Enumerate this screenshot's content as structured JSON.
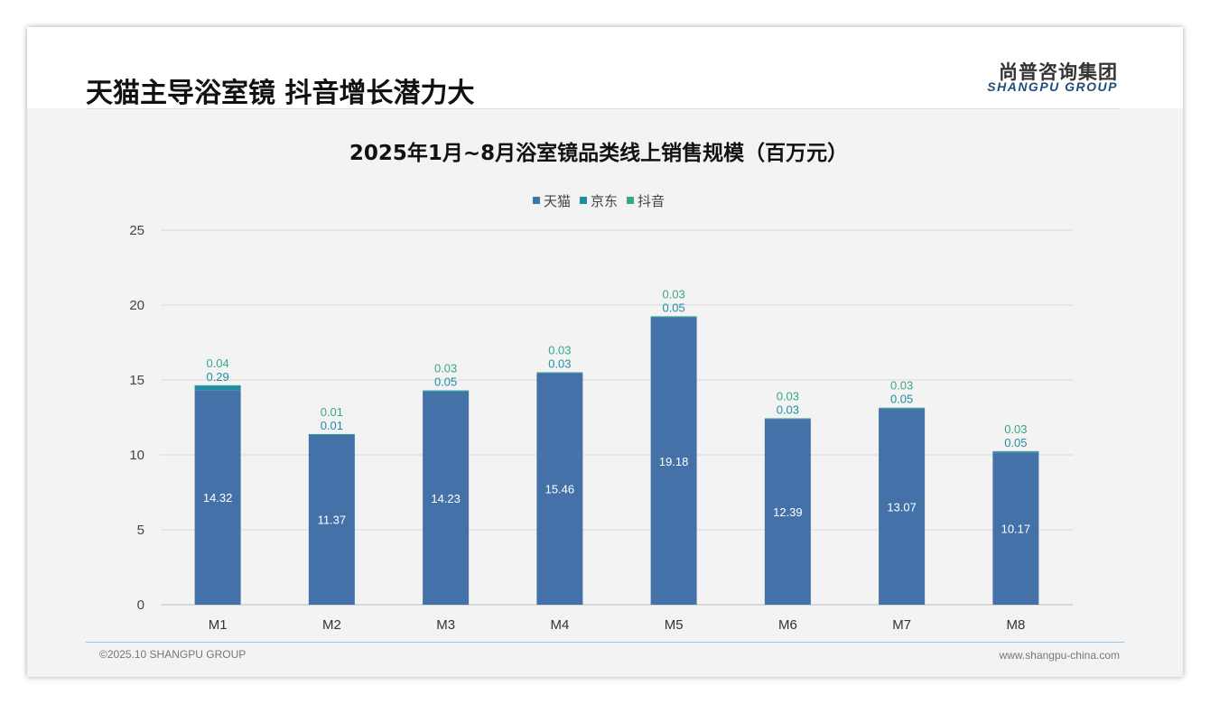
{
  "header": {
    "title": "天猫主导浴室镜 抖音增长潜力大",
    "logo_cn": "尚普咨询集团",
    "logo_en": "SHANGPU GROUP"
  },
  "footer": {
    "copyright": "©2025.10 SHANGPU GROUP",
    "website": "www.shangpu-china.com"
  },
  "watermark": {
    "cn": "尚普咨询集团",
    "en": "SHANGPU GROUP"
  },
  "chart_data": {
    "type": "bar",
    "stacked": true,
    "title": "2025年1月~8月浴室镜品类线上销售规模（百万元）",
    "categories": [
      "M1",
      "M2",
      "M3",
      "M4",
      "M5",
      "M6",
      "M7",
      "M8"
    ],
    "series": [
      {
        "name": "天猫",
        "color": "#4472a8",
        "values": [
          14.32,
          11.37,
          14.23,
          15.46,
          19.18,
          12.39,
          13.07,
          10.17
        ]
      },
      {
        "name": "京东",
        "color": "#1f8ea3",
        "values": [
          0.29,
          0.01,
          0.05,
          0.03,
          0.05,
          0.03,
          0.05,
          0.05
        ]
      },
      {
        "name": "抖音",
        "color": "#3aa68c",
        "values": [
          0.04,
          0.01,
          0.03,
          0.03,
          0.03,
          0.03,
          0.03,
          0.03
        ]
      }
    ],
    "ylim": [
      0,
      25
    ],
    "yticks": [
      0,
      5,
      10,
      15,
      20,
      25
    ],
    "grid": true,
    "legend": "top"
  }
}
